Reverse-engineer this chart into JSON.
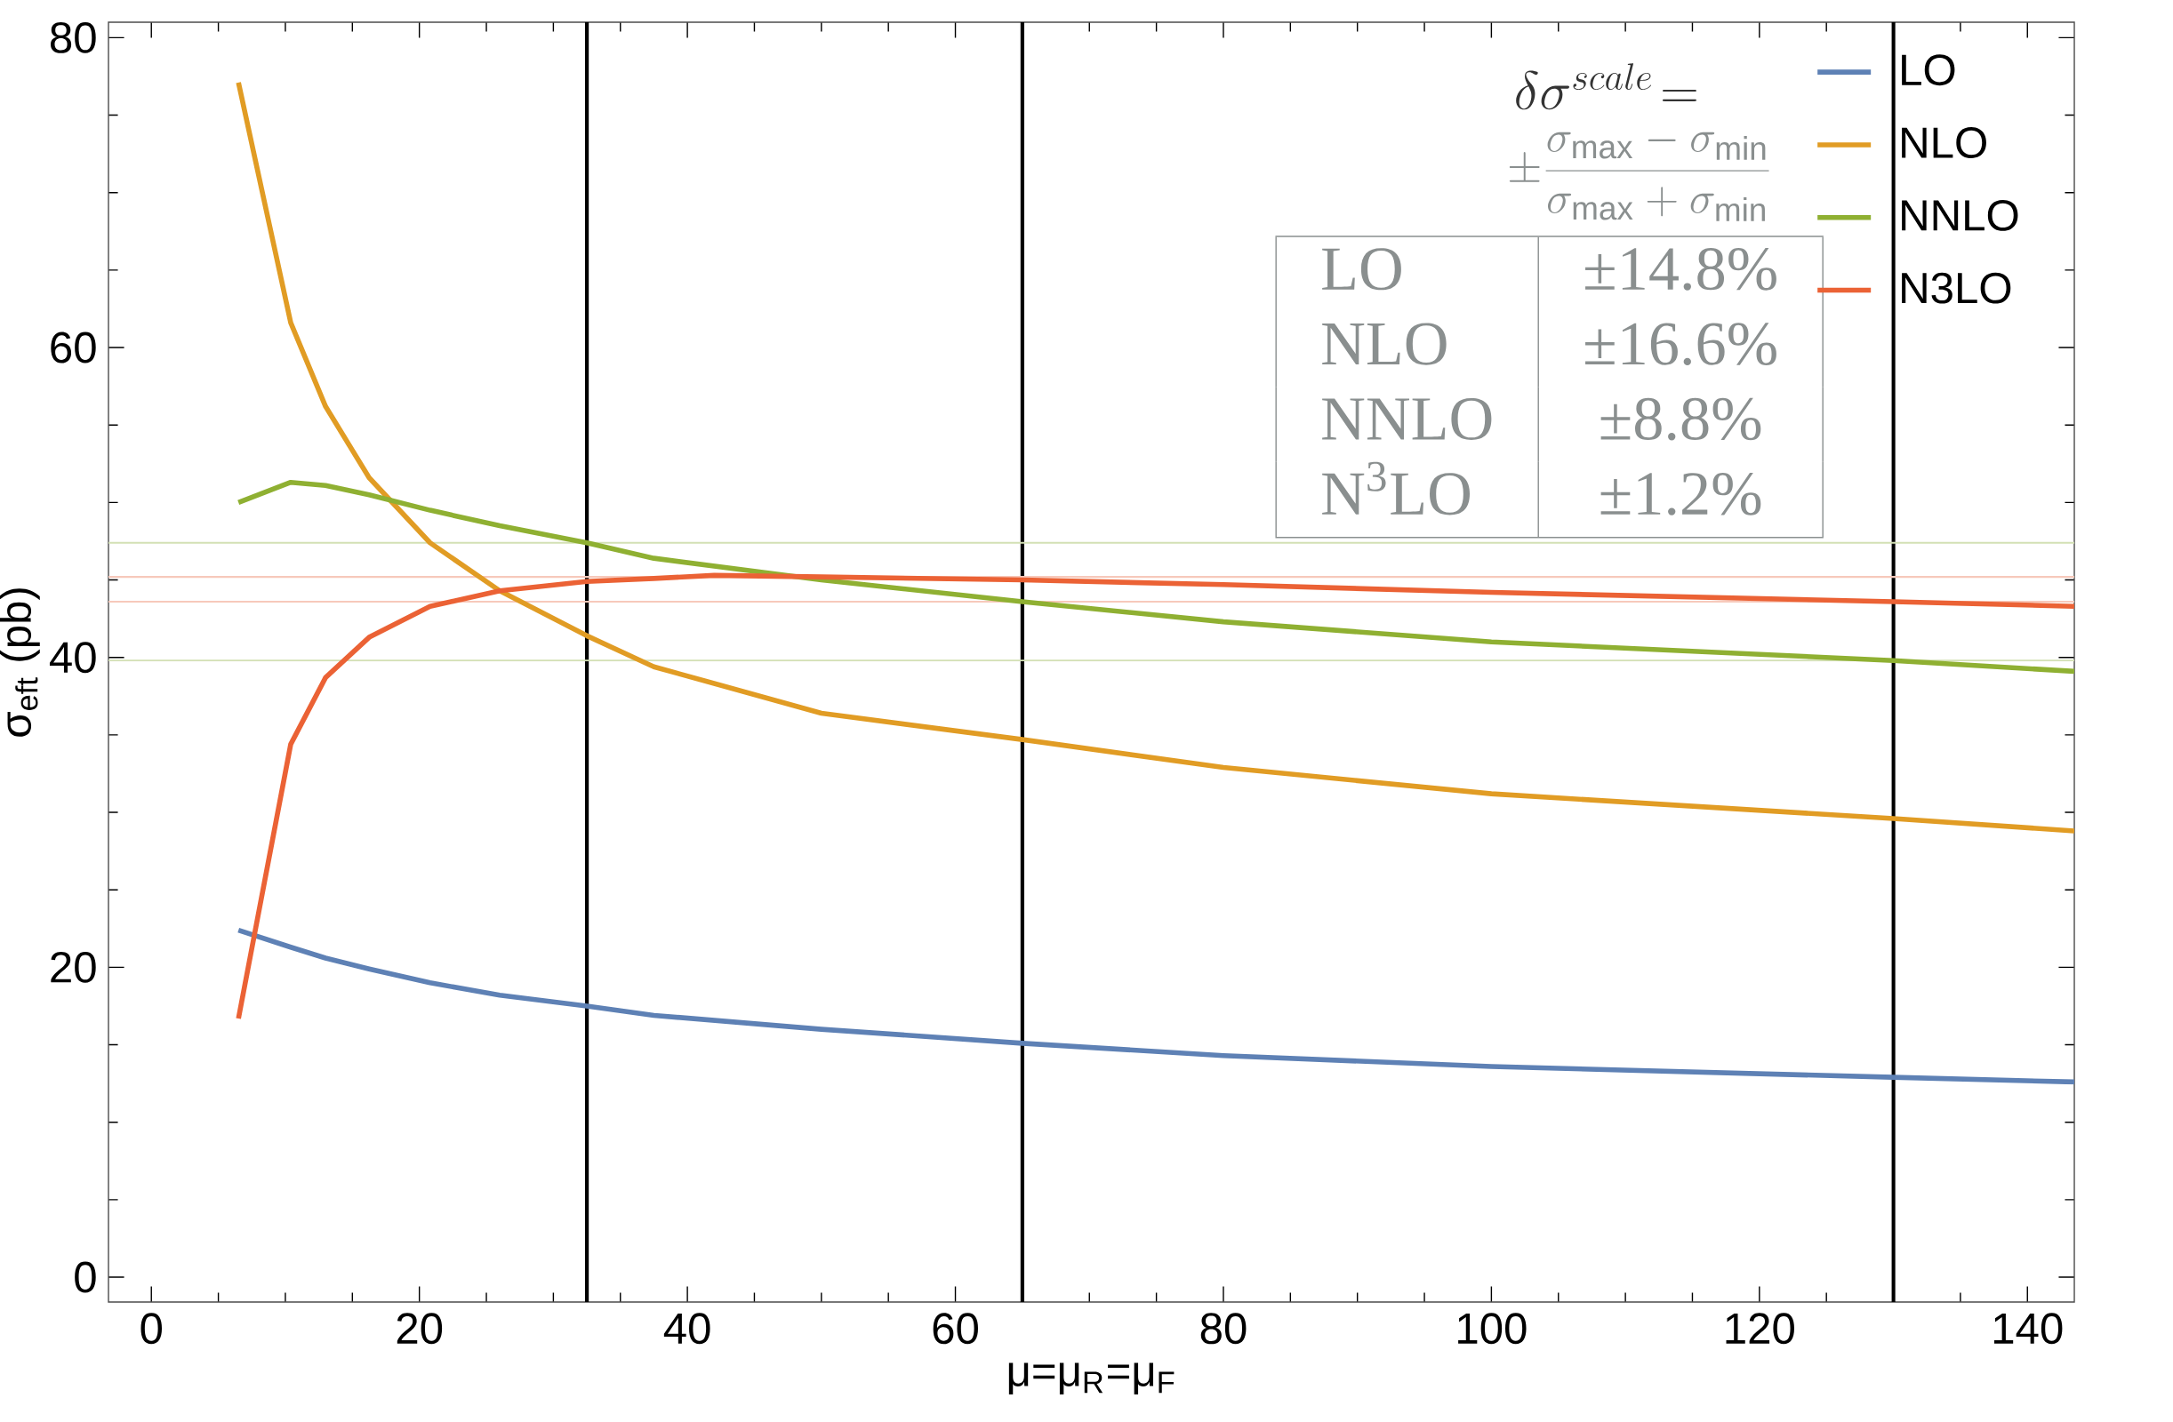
{
  "chart_data": {
    "type": "line",
    "xlabel": "μ=μ$_{R}$=μ$_{F}$",
    "ylabel": "σ$_{eft}$ (pb)",
    "xlim": [
      -3.2,
      143.5
    ],
    "ylim": [
      -1.6,
      81
    ],
    "xticks": [
      0,
      20,
      40,
      60,
      80,
      100,
      120,
      140
    ],
    "yticks": [
      0,
      20,
      40,
      60,
      80
    ],
    "legend": "top right",
    "series": [
      {
        "name": "LO",
        "color": "#5e81b5",
        "x": [
          6.5,
          10.4,
          13,
          16.25,
          20.8,
          26,
          32.5,
          37.5,
          50,
          65,
          80,
          100,
          130,
          143.5
        ],
        "values": [
          22.4,
          21.3,
          20.6,
          19.9,
          19.0,
          18.2,
          17.5,
          16.9,
          16.0,
          15.1,
          14.3,
          13.6,
          12.9,
          12.6
        ]
      },
      {
        "name": "NLO",
        "color": "#e19c24",
        "x": [
          6.5,
          10.4,
          13,
          16.25,
          20.8,
          26,
          32.5,
          37.5,
          50,
          65,
          80,
          100,
          130,
          143.5
        ],
        "values": [
          77.1,
          61.6,
          56.2,
          51.6,
          47.4,
          44.3,
          41.4,
          39.4,
          36.4,
          34.7,
          32.9,
          31.2,
          29.6,
          28.8
        ]
      },
      {
        "name": "NNLO",
        "color": "#8fb032",
        "x": [
          6.5,
          10.4,
          13,
          16.25,
          20.8,
          26,
          32.5,
          37.5,
          50,
          65,
          80,
          100,
          130,
          143.5
        ],
        "values": [
          50.0,
          51.3,
          51.1,
          50.5,
          49.5,
          48.5,
          47.4,
          46.4,
          45.0,
          43.6,
          42.3,
          41.0,
          39.8,
          39.1
        ]
      },
      {
        "name": "N3LO",
        "color": "#eb6235",
        "x": [
          6.5,
          10.4,
          13,
          16.25,
          20.8,
          26,
          32.5,
          37.5,
          42,
          50,
          65,
          80,
          100,
          130,
          143.5
        ],
        "values": [
          16.7,
          34.4,
          38.7,
          41.3,
          43.3,
          44.3,
          44.9,
          45.1,
          45.3,
          45.2,
          45.0,
          44.7,
          44.2,
          43.6,
          43.3
        ]
      }
    ],
    "ref_lines": [
      {
        "axis": "x",
        "value": 32.5,
        "color": "#000000"
      },
      {
        "axis": "x",
        "value": 65,
        "color": "#000000"
      },
      {
        "axis": "x",
        "value": 130,
        "color": "#000000"
      },
      {
        "axis": "y",
        "value": 47.4,
        "color": "#d3e0b5"
      },
      {
        "axis": "y",
        "value": 39.8,
        "color": "#d3e0b5"
      },
      {
        "axis": "y",
        "value": 45.2,
        "color": "#f7c9bb"
      },
      {
        "axis": "y",
        "value": 43.6,
        "color": "#f7c9bb"
      }
    ],
    "annotations": [
      "\\delta\\sigma^{scale}\\!=",
      "\\pm\\frac{\\sigma_{\\max}-\\sigma_{\\min}}{\\sigma_{\\max}+\\sigma_{\\min}}",
      "LO",
      "±14.8%",
      "NLO",
      "±16.6%",
      "NNLO",
      "±8.8%",
      "N$^{3}$LO",
      "±1.2%"
    ]
  }
}
